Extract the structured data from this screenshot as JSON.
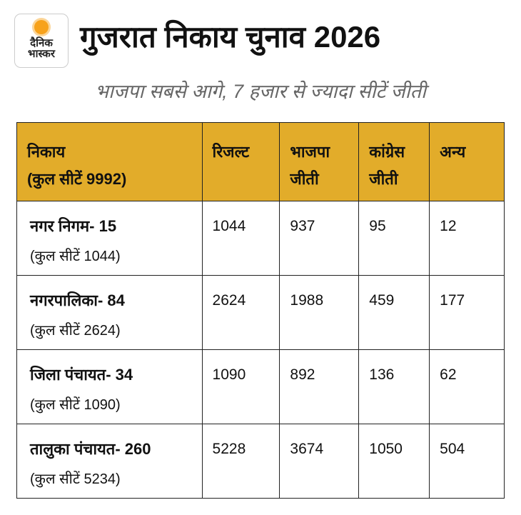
{
  "logo": {
    "line1": "दैनिक",
    "line2": "भास्कर"
  },
  "title": "गुजरात निकाय चुनाव 2026",
  "subtitle": "भाजपा सबसे आगे, 7 हजार से ज्यादा सीटें जीती",
  "colors": {
    "header_bg": "#e2ac2a",
    "sun": "#f7a21b"
  },
  "table": {
    "headers": [
      {
        "line1": "निकाय",
        "line2": "(कुल सीटें 9992)"
      },
      {
        "line1": "रिजल्ट",
        "line2": ""
      },
      {
        "line1": "भाजपा",
        "line2": "जीती"
      },
      {
        "line1": "कांग्रेस",
        "line2": "जीती"
      },
      {
        "line1": "अन्य",
        "line2": ""
      }
    ],
    "rows": [
      {
        "name": "नगर निगम- 15",
        "total": "(कुल सीटें 1044)",
        "result": "1044",
        "bjp": "937",
        "congress": "95",
        "others": "12"
      },
      {
        "name": "नगरपालिका- 84",
        "total": "(कुल सीटें 2624)",
        "result": "2624",
        "bjp": "1988",
        "congress": "459",
        "others": "177"
      },
      {
        "name": "जिला पंचायत- 34",
        "total": "(कुल सीटें 1090)",
        "result": "1090",
        "bjp": "892",
        "congress": "136",
        "others": "62"
      },
      {
        "name": "तालुका पंचायत- 260",
        "total": "(कुल सीटें 5234)",
        "result": "5228",
        "bjp": "3674",
        "congress": "1050",
        "others": "504"
      }
    ]
  }
}
